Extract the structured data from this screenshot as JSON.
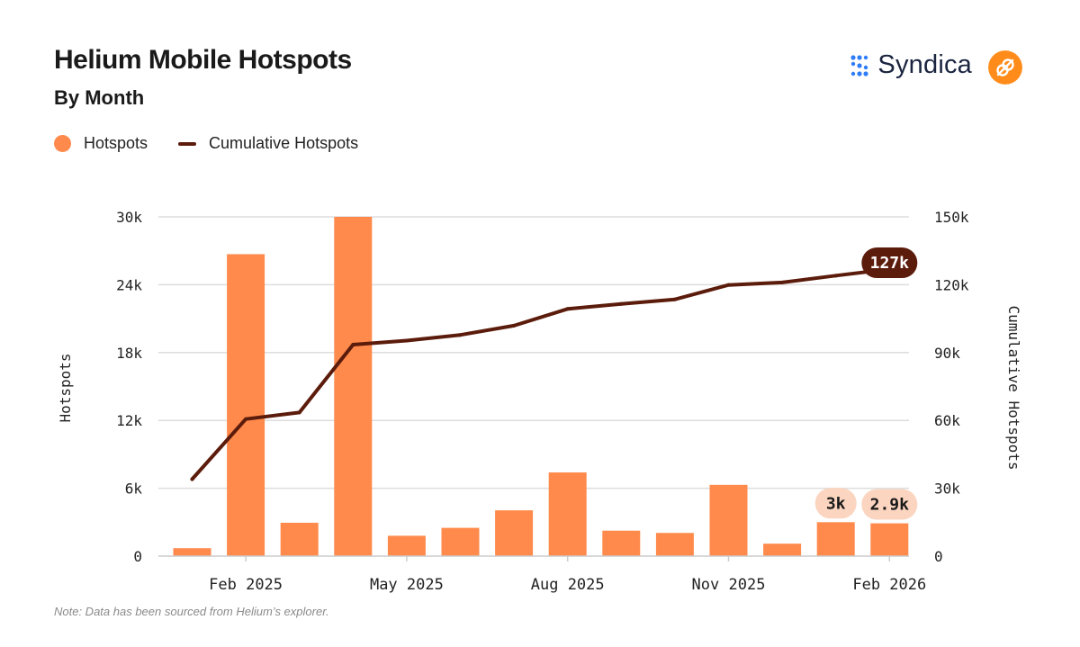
{
  "header": {
    "title": "Helium Mobile Hotspots",
    "subtitle": "By Month"
  },
  "brand": {
    "name": "Syndica",
    "logo_icon": "syndica-logo-icon",
    "partner_icon": "helium-logo-icon"
  },
  "legend": {
    "bars_label": "Hotspots",
    "line_label": "Cumulative Hotspots"
  },
  "note": "Note: Data has been sourced from Helium’s explorer.",
  "colors": {
    "bar": "#ff8a4c",
    "line": "#5c1c0c",
    "grid": "#dddddd",
    "bar_label_bg": "#fbd5bf",
    "line_label_bg": "#5c1c0c",
    "helium_orange": "#ff8c1a",
    "syndica_blue": "#2f7df6"
  },
  "chart_data": {
    "type": "bar",
    "title": "Helium Mobile Hotspots",
    "subtitle": "By Month",
    "x_tick_labels": [
      "Feb 2025",
      "May 2025",
      "Aug 2025",
      "Nov 2025",
      "Feb 2026"
    ],
    "y_left": {
      "label": "Hotspots",
      "ylim": [
        0,
        30000
      ],
      "ticks": [
        0,
        6000,
        12000,
        18000,
        24000,
        30000
      ],
      "tick_labels": [
        "0",
        "6k",
        "12k",
        "18k",
        "24k",
        "30k"
      ]
    },
    "y_right": {
      "label": "Cumulative Hotspots",
      "ylim": [
        0,
        150000
      ],
      "ticks": [
        0,
        30000,
        60000,
        90000,
        120000,
        150000
      ],
      "tick_labels": [
        "0",
        "30k",
        "60k",
        "90k",
        "120k",
        "150k"
      ]
    },
    "grid": true,
    "legend_position": "top-left",
    "categories": [
      "2025-01",
      "2025-02",
      "2025-03",
      "2025-04",
      "2025-05",
      "2025-06",
      "2025-07",
      "2025-08",
      "2025-09",
      "2025-10",
      "2025-11",
      "2025-12",
      "2026-01",
      "2026-02"
    ],
    "series": [
      {
        "name": "Hotspots",
        "type": "bar",
        "axis": "left",
        "values": [
          700,
          26700,
          2950,
          30000,
          1800,
          2500,
          4050,
          7400,
          2250,
          2050,
          6300,
          1100,
          3000,
          2900
        ]
      },
      {
        "name": "Cumulative Hotspots",
        "type": "line",
        "axis": "right",
        "values": [
          34000,
          60600,
          63500,
          93500,
          95300,
          97800,
          101900,
          109300,
          111500,
          113500,
          119900,
          121000,
          124000,
          126900
        ]
      }
    ],
    "annotations": [
      {
        "series": "Hotspots",
        "index": 12,
        "label": "3k"
      },
      {
        "series": "Hotspots",
        "index": 13,
        "label": "2.9k"
      },
      {
        "series": "Cumulative Hotspots",
        "index": 13,
        "label": "127k"
      }
    ]
  }
}
